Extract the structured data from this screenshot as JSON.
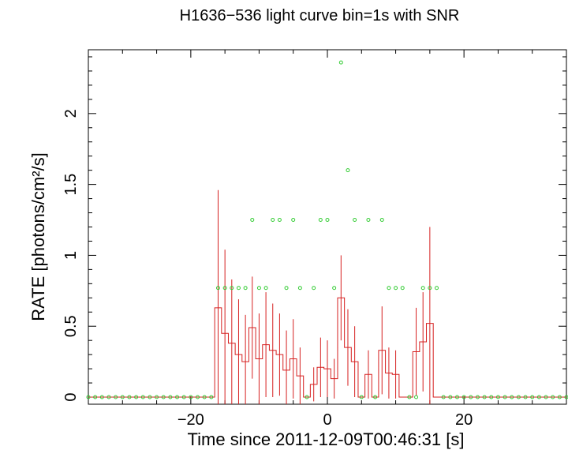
{
  "chart_data": {
    "type": "line",
    "title": "H1636−536 light curve bin=1s with SNR",
    "xlabel": "Time since 2011-12-09T00:46:31 [s]",
    "ylabel": "RATE [photons/cm²/s]",
    "xlim": [
      -35,
      35
    ],
    "ylim": [
      -0.05,
      2.45
    ],
    "x_ticks": [
      -20,
      0,
      20
    ],
    "x_tick_labels": [
      "−20",
      "0",
      "20"
    ],
    "y_ticks": [
      0,
      0.5,
      1,
      1.5,
      2
    ],
    "y_tick_labels": [
      "0",
      "0.5",
      "1",
      "1.5",
      "2"
    ],
    "grid": false,
    "colors": {
      "rate": "#d62020",
      "snr": "#33cc33"
    },
    "series": [
      {
        "kind": "step_with_errorbars",
        "bins": [
          {
            "x": -16,
            "y": 0.63,
            "err": 0.83
          },
          {
            "x": -15,
            "y": 0.45,
            "err": 0.59
          },
          {
            "x": -14,
            "y": 0.38,
            "err": 0.45
          },
          {
            "x": -13,
            "y": 0.3,
            "err": 0.39
          },
          {
            "x": -12,
            "y": 0.25,
            "err": 0.33
          },
          {
            "x": -11,
            "y": 0.49,
            "err": 0.36
          },
          {
            "x": -10,
            "y": 0.27,
            "err": 0.32
          },
          {
            "x": -9,
            "y": 0.37,
            "err": 0.37
          },
          {
            "x": -8,
            "y": 0.33,
            "err": 0.33
          },
          {
            "x": -7,
            "y": 0.3,
            "err": 0.29
          },
          {
            "x": -6,
            "y": 0.19,
            "err": 0.28
          },
          {
            "x": -5,
            "y": 0.27,
            "err": 0.28
          },
          {
            "x": -4,
            "y": 0.15,
            "err": 0.2
          },
          {
            "x": -3,
            "y": 0.0,
            "err": 0.0
          },
          {
            "x": -2,
            "y": 0.09,
            "err": 0.12
          },
          {
            "x": -1,
            "y": 0.21,
            "err": 0.21
          },
          {
            "x": 0,
            "y": 0.2,
            "err": 0.2
          },
          {
            "x": 1,
            "y": 0.13,
            "err": 0.14
          },
          {
            "x": 2,
            "y": 0.7,
            "err": 0.3
          },
          {
            "x": 3,
            "y": 0.35,
            "err": 0.27
          },
          {
            "x": 4,
            "y": 0.25,
            "err": 0.25
          },
          {
            "x": 5,
            "y": 0.0,
            "err": 0.0
          },
          {
            "x": 6,
            "y": 0.16,
            "err": 0.17
          },
          {
            "x": 7,
            "y": 0.0,
            "err": 0.0
          },
          {
            "x": 8,
            "y": 0.33,
            "err": 0.31
          },
          {
            "x": 9,
            "y": 0.17,
            "err": 0.18
          },
          {
            "x": 10,
            "y": 0.16,
            "err": 0.17
          },
          {
            "x": 11,
            "y": 0.0,
            "err": 0.0
          },
          {
            "x": 12,
            "y": 0.0,
            "err": 0.0
          },
          {
            "x": 13,
            "y": 0.32,
            "err": 0.31
          },
          {
            "x": 14,
            "y": 0.39,
            "err": 0.35
          },
          {
            "x": 15,
            "y": 0.52,
            "err": 0.68
          }
        ]
      },
      {
        "kind": "scatter",
        "x": [
          -35,
          -34,
          -33,
          -32,
          -31,
          -30,
          -29,
          -28,
          -27,
          -26,
          -25,
          -24,
          -23,
          -22,
          -21,
          -20,
          -19,
          -18,
          -17,
          -16,
          -15,
          -14,
          -13,
          -12,
          -11,
          -10,
          -9,
          -8,
          -7,
          -6,
          -5,
          -4,
          -3,
          -2,
          -1,
          0,
          1,
          2,
          3,
          4,
          5,
          6,
          7,
          8,
          9,
          10,
          11,
          12,
          13,
          14,
          15,
          16,
          17,
          18,
          19,
          20,
          21,
          22,
          23,
          24,
          25,
          26,
          27,
          28,
          29,
          30,
          31,
          32,
          33,
          34,
          35
        ],
        "y": [
          0,
          0,
          0,
          0,
          0,
          0,
          0,
          0,
          0,
          0,
          0,
          0,
          0,
          0,
          0,
          0,
          0,
          0,
          0,
          0.77,
          0.77,
          0.77,
          0.77,
          0.77,
          1.25,
          0.77,
          0.77,
          1.25,
          1.25,
          0.77,
          1.25,
          0.77,
          0,
          0.77,
          1.25,
          1.25,
          0.77,
          2.36,
          1.6,
          1.25,
          0,
          1.25,
          0,
          1.25,
          0.77,
          0.77,
          0.77,
          0,
          0,
          0.77,
          0.77,
          0.77,
          0,
          0,
          0,
          0,
          0,
          0,
          0,
          0,
          0,
          0,
          0,
          0,
          0,
          0,
          0,
          0,
          0,
          0,
          0
        ]
      }
    ]
  }
}
